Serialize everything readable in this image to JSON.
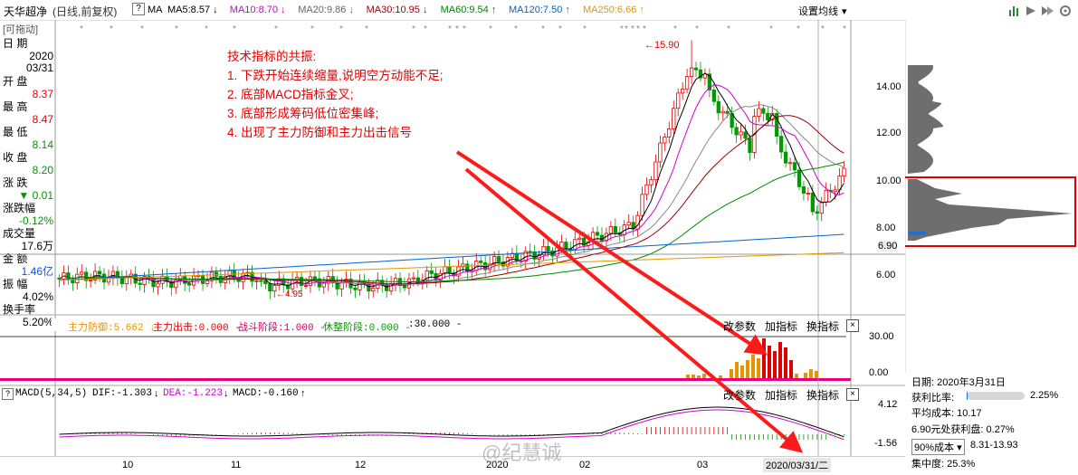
{
  "header": {
    "stock_name": "天华超净",
    "period": "(日线,前复权)",
    "help": "?",
    "ma_label": "MA",
    "ma": [
      {
        "label": "MA5:8.57",
        "color": "#000000",
        "arrow": "↓"
      },
      {
        "label": "MA10:8.70",
        "color": "#d000d0",
        "arrow": "↓"
      },
      {
        "label": "MA20:9.86",
        "color": "#666666",
        "arrow": "↓"
      },
      {
        "label": "MA30:10.95",
        "color": "#990000",
        "arrow": "↓"
      },
      {
        "label": "MA60:9.54",
        "color": "#008800",
        "arrow": "↑"
      },
      {
        "label": "MA120:7.50",
        "color": "#0066cc",
        "arrow": "↑"
      },
      {
        "label": "MA250:6.66",
        "color": "#e69500",
        "arrow": "↑"
      }
    ],
    "settings_label": "设置均线",
    "settings_arrow": "▾"
  },
  "left_panel": {
    "draggable": "[可拖动]",
    "date_label": "日  期",
    "date_year": "2020",
    "date_md": "03/31",
    "open_label": "开  盘",
    "open_val": "8.37",
    "high_label": "最  高",
    "high_val": "8.47",
    "low_label": "最  低",
    "low_val": "8.14",
    "close_label": "收  盘",
    "close_val": "8.20",
    "change_label": "涨  跌",
    "change_val": "▼ 0.01",
    "pct_label": "涨跌幅",
    "pct_val": "-0.12%",
    "vol_label": "成交量",
    "vol_val": "17.6万",
    "amount_label": "金  额",
    "amount_val": "1.46亿",
    "amp_label": "振  幅",
    "amp_val": "4.02%",
    "turnover_label": "换手率",
    "turnover_val": "5.20%"
  },
  "price_axis": [
    "14.00",
    "12.00",
    "10.00",
    "8.00",
    "6.90",
    "6.00"
  ],
  "peak_label": "15.90",
  "low_label": "4.95",
  "annotation": [
    "技术指标的共振:",
    "1. 下跌开始连续缩量,说明空方动能不足;",
    "2. 底部MACD指标金叉;",
    "3. 底部形成筹码低位密集峰;",
    "4. 出现了主力防御和主力出击信号"
  ],
  "indicator_panel": {
    "items": [
      {
        "label": "主力防御:5.662",
        "color": "#e69500",
        "arrow": "↓"
      },
      {
        "label": "主力出击:0.000",
        "color": "#e00000",
        "arrow": "-"
      },
      {
        "label": "战斗阶段:1.000",
        "color": "#cc0066",
        "arrow": "-"
      },
      {
        "label": "休整阶段:0.000",
        "color": "#009900",
        "arrow": "-"
      },
      {
        "label": ":30.000",
        "color": "#000000",
        "arrow": "-"
      }
    ],
    "axis": [
      "30.00",
      "0.00"
    ],
    "params_label": "改参数",
    "add_label": "加指标",
    "switch_label": "换指标",
    "close_label": "×"
  },
  "macd_panel": {
    "help": "?",
    "title": "MACD(5,34,5)",
    "dif": "DIF:-1.303",
    "dif_arrow": "↓",
    "dea": "DEA:-1.223",
    "dea_arrow": "↓",
    "macd": "MACD:-0.160",
    "macd_arrow": "↑",
    "axis": [
      "4.12",
      "-1.56"
    ],
    "params_label": "改参数",
    "add_label": "加指标",
    "switch_label": "换指标",
    "close_label": "×"
  },
  "x_axis": [
    "10",
    "11",
    "12",
    "2020",
    "02",
    "03"
  ],
  "cursor_date": "2020/03/31/二",
  "watermark": "@纪慧诚",
  "chip_panel": {
    "date": "日期: 2020年3月31日",
    "profit_ratio_label": "获利比率:",
    "profit_ratio": "2.25%",
    "profit_ratio_fraction": 0.0225,
    "avg_cost": "平均成本: 10.17",
    "profit_at": "6.90元处获利盘: 0.27%",
    "cost90_label": "90%成本",
    "cost90_range": "8.31-13.93",
    "concentration": "集中度: 25.3%"
  },
  "colors": {
    "up": "#e00000",
    "down": "#009900",
    "annot": "#ff1a1a",
    "chip": "#6e6e6e",
    "highlight": "#e00000"
  }
}
